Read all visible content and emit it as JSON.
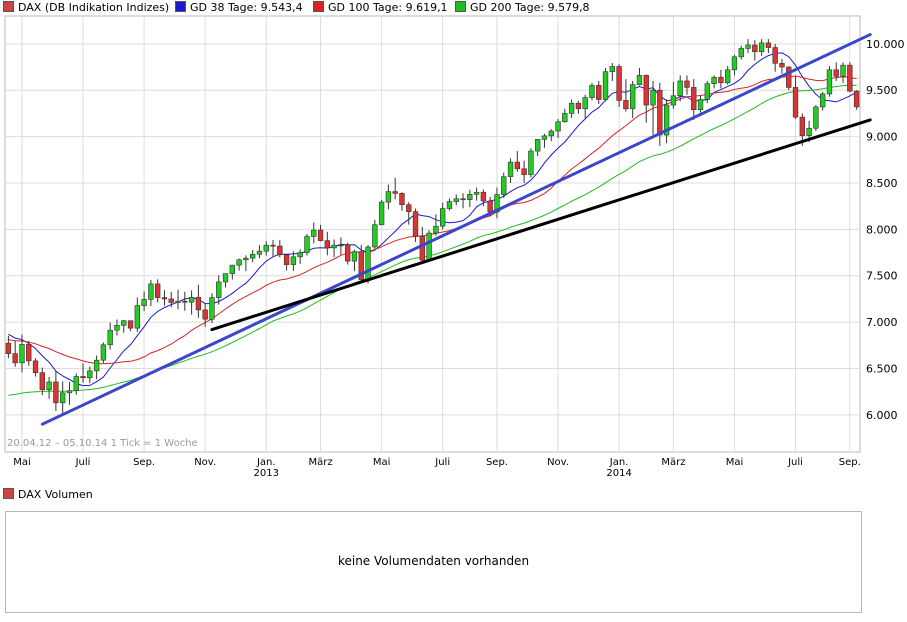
{
  "legend": {
    "main": {
      "label": "DAX (DB Indikation Indizes)",
      "color": "#cc4444"
    },
    "gd38": {
      "label": "GD 38 Tage: 9.543,4",
      "color": "#1a1acc"
    },
    "gd100": {
      "label": "GD 100 Tage: 9.619,1",
      "color": "#dd2222"
    },
    "gd200": {
      "label": "GD 200 Tage: 9.579,8",
      "color": "#22bb22"
    }
  },
  "range_text": "20.04.12 – 05.10.14   1 Tick = 1 Woche",
  "volume": {
    "legend_label": "DAX Volumen",
    "message": "keine Volumendaten vorhanden"
  },
  "chart_data": {
    "type": "candlestick",
    "interval": "1 week",
    "ylim": [
      5600,
      10300
    ],
    "yticks": [
      {
        "value": 6000,
        "label": "6.000"
      },
      {
        "value": 6500,
        "label": "6.500"
      },
      {
        "value": 7000,
        "label": "7.000"
      },
      {
        "value": 7500,
        "label": "7.500"
      },
      {
        "value": 8000,
        "label": "8.000"
      },
      {
        "value": 8500,
        "label": "8.500"
      },
      {
        "value": 9000,
        "label": "9.000"
      },
      {
        "value": 9500,
        "label": "9.500"
      },
      {
        "value": 10000,
        "label": "10.000"
      }
    ],
    "xticks": [
      {
        "index": 2,
        "label": "Mai"
      },
      {
        "index": 11,
        "label": "Juli"
      },
      {
        "index": 20,
        "label": "Sep."
      },
      {
        "index": 29,
        "label": "Nov."
      },
      {
        "index": 38,
        "label": "Jan.",
        "sublabel": "2013"
      },
      {
        "index": 46,
        "label": "März"
      },
      {
        "index": 55,
        "label": "Mai"
      },
      {
        "index": 64,
        "label": "Juli"
      },
      {
        "index": 72,
        "label": "Sep."
      },
      {
        "index": 81,
        "label": "Nov."
      },
      {
        "index": 90,
        "label": "Jan.",
        "sublabel": "2014"
      },
      {
        "index": 98,
        "label": "März"
      },
      {
        "index": 107,
        "label": "Mai"
      },
      {
        "index": 116,
        "label": "Juli"
      },
      {
        "index": 124,
        "label": "Sep."
      }
    ],
    "ohlc": [
      [
        6773,
        6853,
        6611,
        6660
      ],
      [
        6660,
        6798,
        6518,
        6561
      ],
      [
        6561,
        6866,
        6458,
        6760
      ],
      [
        6760,
        6795,
        6530,
        6582
      ],
      [
        6582,
        6612,
        6413,
        6455
      ],
      [
        6455,
        6510,
        6213,
        6271
      ],
      [
        6271,
        6410,
        6173,
        6355
      ],
      [
        6355,
        6473,
        6043,
        6130
      ],
      [
        6130,
        6361,
        6002,
        6238
      ],
      [
        6238,
        6355,
        6108,
        6261
      ],
      [
        6261,
        6446,
        6219,
        6414
      ],
      [
        6414,
        6556,
        6346,
        6400
      ],
      [
        6400,
        6521,
        6343,
        6475
      ],
      [
        6475,
        6640,
        6384,
        6590
      ],
      [
        6590,
        6782,
        6559,
        6756
      ],
      [
        6756,
        6996,
        6703,
        6913
      ],
      [
        6913,
        7028,
        6856,
        6965
      ],
      [
        6965,
        7025,
        6886,
        7015
      ],
      [
        7015,
        7018,
        6903,
        6935
      ],
      [
        6935,
        7264,
        6895,
        7178
      ],
      [
        7178,
        7331,
        7119,
        7245
      ],
      [
        7245,
        7456,
        7173,
        7412
      ],
      [
        7412,
        7461,
        7212,
        7265
      ],
      [
        7265,
        7345,
        7178,
        7250
      ],
      [
        7250,
        7327,
        7160,
        7212
      ],
      [
        7212,
        7350,
        7139,
        7226
      ],
      [
        7226,
        7327,
        7122,
        7215
      ],
      [
        7215,
        7342,
        7082,
        7268
      ],
      [
        7268,
        7402,
        7047,
        7132
      ],
      [
        7132,
        7202,
        6950,
        7032
      ],
      [
        7032,
        7311,
        6990,
        7265
      ],
      [
        7265,
        7504,
        7190,
        7433
      ],
      [
        7433,
        7522,
        7373,
        7523
      ],
      [
        7523,
        7619,
        7460,
        7614
      ],
      [
        7614,
        7684,
        7555,
        7672
      ],
      [
        7672,
        7720,
        7550,
        7690
      ],
      [
        7690,
        7778,
        7645,
        7732
      ],
      [
        7732,
        7830,
        7690,
        7765
      ],
      [
        7765,
        7872,
        7717,
        7830
      ],
      [
        7830,
        7887,
        7701,
        7820
      ],
      [
        7820,
        7884,
        7697,
        7726
      ],
      [
        7726,
        7732,
        7557,
        7620
      ],
      [
        7620,
        7764,
        7553,
        7704
      ],
      [
        7704,
        7785,
        7628,
        7750
      ],
      [
        7750,
        7950,
        7718,
        7923
      ],
      [
        7923,
        8074,
        7850,
        7992
      ],
      [
        7992,
        8048,
        7870,
        7879
      ],
      [
        7879,
        7974,
        7720,
        7800
      ],
      [
        7800,
        7892,
        7700,
        7830
      ],
      [
        7830,
        7913,
        7726,
        7832
      ],
      [
        7832,
        7857,
        7620,
        7658
      ],
      [
        7658,
        7781,
        7550,
        7760
      ],
      [
        7760,
        7833,
        7420,
        7459
      ],
      [
        7459,
        7831,
        7416,
        7810
      ],
      [
        7810,
        8103,
        7786,
        8050
      ],
      [
        8050,
        8318,
        8043,
        8294
      ],
      [
        8294,
        8484,
        8217,
        8407
      ],
      [
        8407,
        8557,
        8323,
        8388
      ],
      [
        8388,
        8400,
        8201,
        8266
      ],
      [
        8266,
        8293,
        8051,
        8191
      ],
      [
        8191,
        8224,
        7865,
        7923
      ],
      [
        7923,
        8026,
        7661,
        7668
      ],
      [
        7668,
        7991,
        7650,
        7960
      ],
      [
        7960,
        8161,
        7930,
        8034
      ],
      [
        8034,
        8287,
        8000,
        8224
      ],
      [
        8224,
        8332,
        8203,
        8299
      ],
      [
        8299,
        8377,
        8260,
        8330
      ],
      [
        8330,
        8390,
        8227,
        8320
      ],
      [
        8320,
        8428,
        8240,
        8378
      ],
      [
        8378,
        8450,
        8310,
        8400
      ],
      [
        8400,
        8430,
        8250,
        8306
      ],
      [
        8306,
        8350,
        8140,
        8187
      ],
      [
        8187,
        8450,
        8120,
        8375
      ],
      [
        8375,
        8612,
        8340,
        8568
      ],
      [
        8568,
        8765,
        8500,
        8725
      ],
      [
        8725,
        8844,
        8620,
        8653
      ],
      [
        8653,
        8740,
        8500,
        8590
      ],
      [
        8590,
        8875,
        8560,
        8844
      ],
      [
        8844,
        8973,
        8790,
        8970
      ],
      [
        8970,
        9030,
        8880,
        9008
      ],
      [
        9008,
        9080,
        8950,
        9060
      ],
      [
        9060,
        9190,
        8986,
        9160
      ],
      [
        9160,
        9300,
        9150,
        9250
      ],
      [
        9250,
        9400,
        9200,
        9360
      ],
      [
        9360,
        9385,
        9246,
        9300
      ],
      [
        9300,
        9450,
        9200,
        9420
      ],
      [
        9420,
        9580,
        9390,
        9552
      ],
      [
        9552,
        9600,
        9350,
        9400
      ],
      [
        9400,
        9740,
        9380,
        9700
      ],
      [
        9700,
        9794,
        9600,
        9756
      ],
      [
        9756,
        9780,
        9320,
        9390
      ],
      [
        9390,
        9620,
        9270,
        9300
      ],
      [
        9300,
        9600,
        9200,
        9560
      ],
      [
        9560,
        9740,
        9550,
        9660
      ],
      [
        9660,
        9670,
        9150,
        9340
      ],
      [
        9340,
        9600,
        9020,
        9500
      ],
      [
        9500,
        9580,
        8900,
        9017
      ],
      [
        9017,
        9400,
        8930,
        9340
      ],
      [
        9340,
        9590,
        9300,
        9440
      ],
      [
        9440,
        9660,
        9380,
        9600
      ],
      [
        9600,
        9660,
        9450,
        9530
      ],
      [
        9530,
        9620,
        9180,
        9290
      ],
      [
        9290,
        9440,
        9260,
        9400
      ],
      [
        9400,
        9600,
        9360,
        9570
      ],
      [
        9570,
        9660,
        9520,
        9640
      ],
      [
        9640,
        9720,
        9520,
        9580
      ],
      [
        9580,
        9760,
        9560,
        9720
      ],
      [
        9720,
        9880,
        9660,
        9860
      ],
      [
        9860,
        9980,
        9830,
        9950
      ],
      [
        9950,
        10051,
        9900,
        9987
      ],
      [
        9987,
        10040,
        9820,
        9915
      ],
      [
        9915,
        10050,
        9870,
        10010
      ],
      [
        10010,
        10050,
        9900,
        9960
      ],
      [
        9960,
        10000,
        9700,
        9790
      ],
      [
        9790,
        9840,
        9680,
        9750
      ],
      [
        9750,
        9760,
        9500,
        9530
      ],
      [
        9530,
        9650,
        9190,
        9210
      ],
      [
        9210,
        9250,
        8900,
        9010
      ],
      [
        9010,
        9170,
        8940,
        9090
      ],
      [
        9090,
        9340,
        9060,
        9320
      ],
      [
        9320,
        9480,
        9280,
        9460
      ],
      [
        9460,
        9760,
        9430,
        9720
      ],
      [
        9720,
        9800,
        9600,
        9650
      ],
      [
        9650,
        9800,
        9580,
        9770
      ],
      [
        9770,
        9800,
        9480,
        9490
      ],
      [
        9490,
        9500,
        9290,
        9320
      ]
    ],
    "trendlines": [
      {
        "name": "",
        "color": "#3b46c8",
        "from": {
          "index": 5,
          "value": 5900
        },
        "to": {
          "index": 127,
          "value": 10100
        }
      },
      {
        "name": "",
        "color": "#000000",
        "from": {
          "index": 30,
          "value": 6920
        },
        "to": {
          "index": 127,
          "value": 9180
        }
      }
    ],
    "indicators": [
      {
        "name": "GD 38 Tage",
        "color": "#1a1acc",
        "period": 8,
        "start": 0,
        "start_value": 6900
      },
      {
        "name": "GD 100 Tage",
        "color": "#dd2222",
        "period": 20,
        "start": 0,
        "start_value": 6820
      },
      {
        "name": "GD 200 Tage",
        "color": "#22bb22",
        "period": 40,
        "start": 0,
        "start_value": 6200
      }
    ],
    "up_color": "#22cc22",
    "down_color": "#dd3333",
    "grid": true
  }
}
